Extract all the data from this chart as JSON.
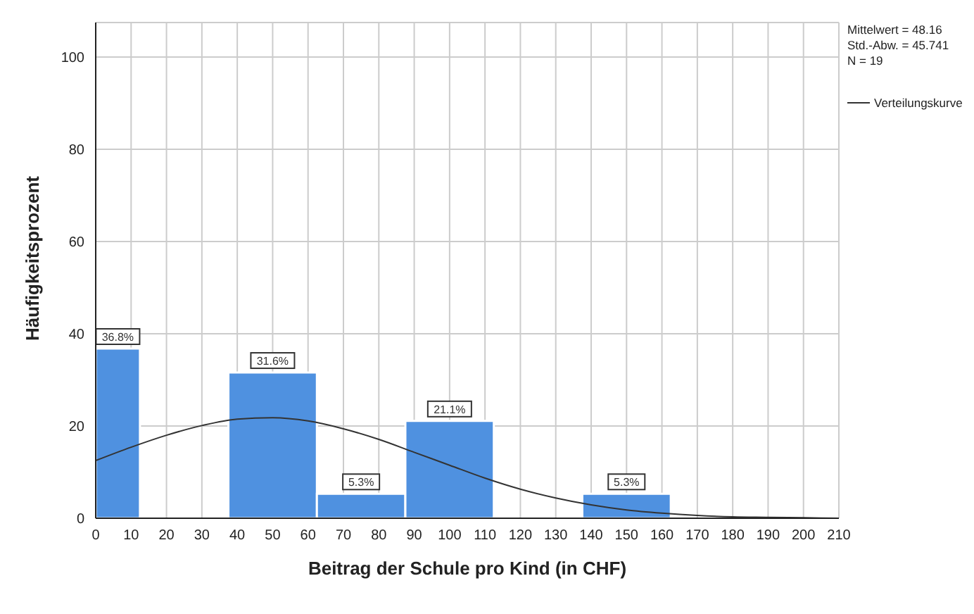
{
  "chart_data": {
    "type": "histogram",
    "xlabel": "Beitrag der Schule pro Kind (in CHF)",
    "ylabel": "Häufigkeitsprozent",
    "bins": [
      0,
      12.5,
      37.5,
      62.5,
      87.5,
      112.5,
      137.5,
      162.5
    ],
    "values": [
      36.8,
      0,
      31.6,
      5.3,
      21.1,
      0,
      5.3
    ],
    "value_labels": [
      "36.8%",
      null,
      "31.6%",
      "5.3%",
      "21.1%",
      null,
      "5.3%"
    ],
    "color": "#4f91e0",
    "series": [
      {
        "type": "line",
        "name": "Verteilungskurve",
        "color": "#333333",
        "x": [
          0,
          10,
          20,
          30,
          40,
          50,
          60,
          70,
          80,
          90,
          100,
          110,
          120,
          130,
          140,
          150,
          160,
          170,
          180,
          190,
          200,
          210
        ],
        "values": [
          12.5,
          15.4,
          18.0,
          20.1,
          21.5,
          21.8,
          21.1,
          19.4,
          17.1,
          14.3,
          11.5,
          8.7,
          6.3,
          4.4,
          2.9,
          1.8,
          1.1,
          0.6,
          0.3,
          0.2,
          0.1,
          0.0
        ]
      }
    ],
    "xlim": [
      0,
      210
    ],
    "xticks": [
      0,
      10,
      20,
      30,
      40,
      50,
      60,
      70,
      80,
      90,
      100,
      110,
      120,
      130,
      140,
      150,
      160,
      170,
      180,
      190,
      200,
      210
    ],
    "ylim": [
      0,
      107.5
    ],
    "yticks": [
      0,
      20,
      40,
      60,
      80,
      100
    ],
    "grid": true,
    "legend": "right",
    "marker": "none",
    "annotations": [
      "Mittelwert = 48.16",
      "Std.-Abw. = 45.741",
      "N = 19"
    ]
  }
}
